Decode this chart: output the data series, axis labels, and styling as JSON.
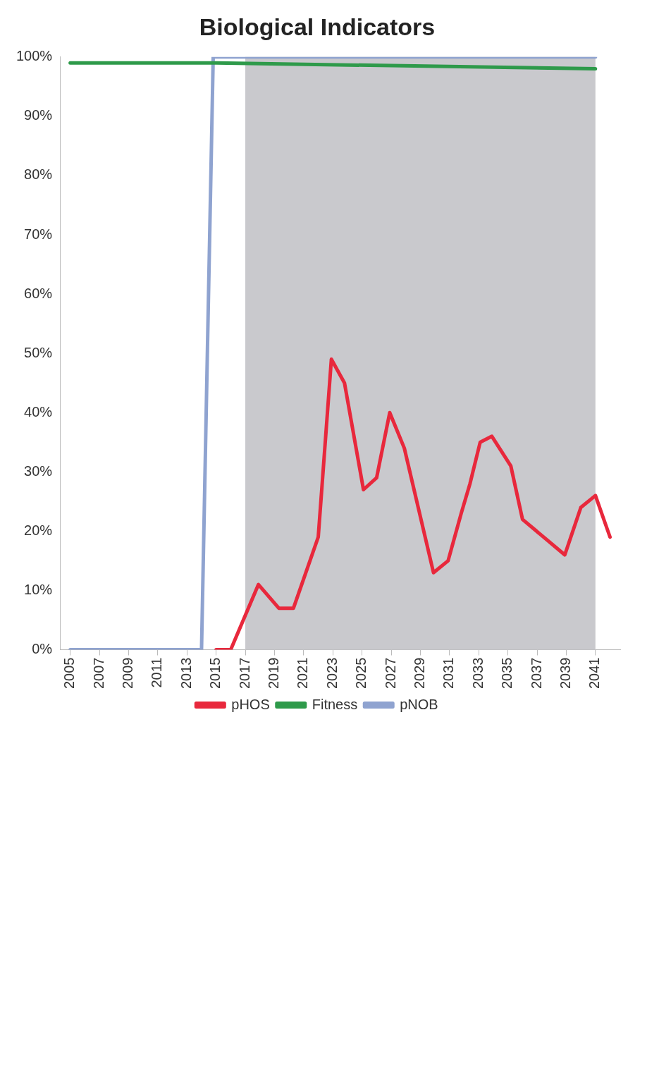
{
  "chart_data": {
    "type": "line",
    "title": "Biological Indicators",
    "xlim": [
      2004.3,
      2042.7
    ],
    "xticks": [
      2005,
      2007,
      2009,
      2011,
      2013,
      2015,
      2017,
      2019,
      2021,
      2023,
      2025,
      2027,
      2029,
      2031,
      2033,
      2035,
      2037,
      2039,
      2041
    ],
    "ylim": [
      0,
      100
    ],
    "yticks": [
      {
        "value": 0,
        "label": "0%"
      },
      {
        "value": 10,
        "label": "10%"
      },
      {
        "value": 20,
        "label": "20%"
      },
      {
        "value": 30,
        "label": "30%"
      },
      {
        "value": 40,
        "label": "40%"
      },
      {
        "value": 50,
        "label": "50%"
      },
      {
        "value": 60,
        "label": "60%"
      },
      {
        "value": 70,
        "label": "70%"
      },
      {
        "value": 80,
        "label": "80%"
      },
      {
        "value": 90,
        "label": "90%"
      },
      {
        "value": 100,
        "label": "100%"
      }
    ],
    "grid": false,
    "legend": "bottom",
    "marker": "none",
    "line_style": "solid",
    "bands": [
      {
        "axis": "x",
        "from": 2017,
        "to": 2041,
        "color": "#c9c9cd"
      }
    ],
    "series": [
      {
        "name": "pHOS",
        "color": "#e8283c",
        "x": [
          2015,
          2016,
          2017.9,
          2019.3,
          2020.3,
          2022,
          2022.9,
          2023.8,
          2025.1,
          2026,
          2026.9,
          2027.9,
          2029.9,
          2030.9,
          2031.8,
          2032.4,
          2033.1,
          2033.9,
          2035.2,
          2036,
          2038.9,
          2040,
          2041,
          2042
        ],
        "values": [
          0,
          0,
          11,
          7,
          7,
          19,
          49,
          45,
          27,
          29,
          40,
          34,
          13,
          15,
          23,
          28,
          35,
          36,
          31,
          22,
          16,
          24,
          26,
          19
        ]
      },
      {
        "name": "Fitness",
        "color": "#2e9a4a",
        "x": [
          2005,
          2015,
          2041
        ],
        "values": [
          99,
          99,
          98
        ]
      },
      {
        "name": "pNOB",
        "color": "#8fa3d0",
        "x": [
          2005,
          2014,
          2014.8,
          2041
        ],
        "values": [
          0,
          0,
          100,
          100
        ]
      }
    ]
  }
}
